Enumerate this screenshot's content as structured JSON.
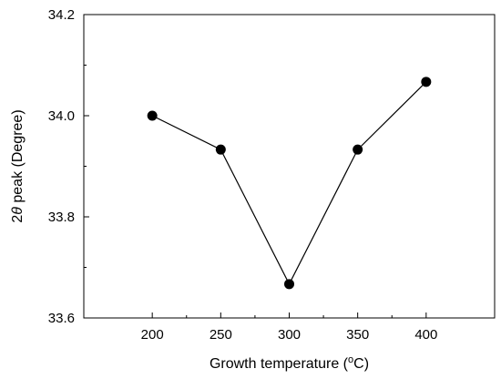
{
  "chart_data": {
    "type": "line",
    "xlabel": {
      "prefix": "Growth temperature (",
      "superscript": "o",
      "suffix": "C)"
    },
    "ylabel": {
      "prefix": "2",
      "symbol": "θ",
      "suffix": " peak (Degree)"
    },
    "x": [
      200,
      250,
      300,
      350,
      400
    ],
    "y": [
      34.0,
      33.933,
      33.667,
      33.933,
      34.067
    ],
    "xlim": [
      150,
      450
    ],
    "ylim": [
      33.6,
      34.2
    ],
    "x_ticks": [
      200,
      250,
      300,
      350,
      400
    ],
    "y_ticks": [
      33.6,
      33.8,
      34.0,
      34.2
    ],
    "y_tick_labels": [
      "33.6",
      "33.8",
      "34.0",
      "34.2"
    ],
    "grid": false,
    "marker": "filled-circle",
    "line_color": "#000000",
    "marker_color": "#000000"
  }
}
